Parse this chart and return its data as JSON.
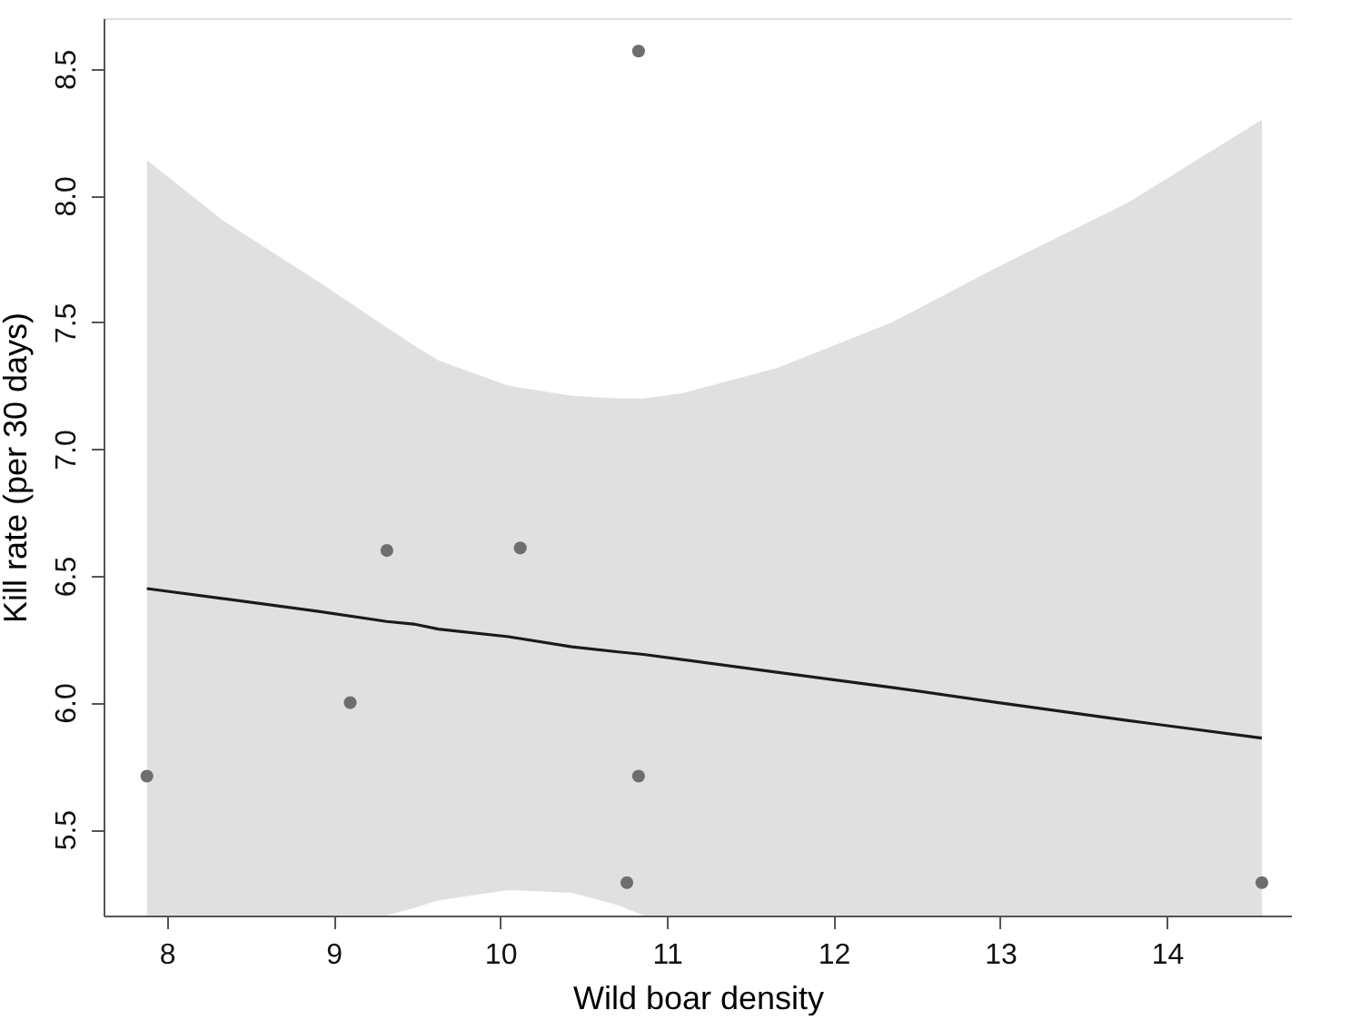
{
  "chart_data": {
    "type": "scatter",
    "xlabel": "Wild boar density",
    "ylabel": "Kill rate (per 30 days)",
    "xlim": [
      7.62,
      14.75
    ],
    "ylim": [
      5.16,
      8.7
    ],
    "xticks": [
      8,
      9,
      10,
      11,
      12,
      13,
      14
    ],
    "yticks": [
      5.5,
      {
        "value": 6,
        "label": "6.0"
      },
      6.5,
      {
        "value": 7,
        "label": "7.0"
      },
      7.5,
      {
        "value": 8,
        "label": "8.0"
      },
      8.5
    ],
    "grid": false,
    "series": [
      {
        "type": "line",
        "color": "#1a1a1a",
        "line_style": "solid",
        "marker": "none",
        "x": [
          7.88,
          8.34,
          8.91,
          9.32,
          9.48,
          9.63,
          10.05,
          10.43,
          10.71,
          10.86,
          11.09,
          11.66,
          12.35,
          12.99,
          13.76,
          14.57
        ],
        "values": [
          6.45,
          6.41,
          6.36,
          6.32,
          6.31,
          6.29,
          6.26,
          6.22,
          6.2,
          6.19,
          6.17,
          6.12,
          6.06,
          6.0,
          5.93,
          5.86
        ],
        "upper": [
          8.14,
          7.9,
          7.66,
          7.48,
          7.41,
          7.35,
          7.25,
          7.21,
          7.2,
          7.2,
          7.22,
          7.32,
          7.5,
          7.72,
          7.97,
          8.3
        ],
        "lower": [
          5.16,
          5.16,
          5.16,
          5.16,
          5.19,
          5.22,
          5.26,
          5.25,
          5.2,
          5.16,
          5.16,
          5.16,
          5.16,
          5.16,
          5.16,
          5.16
        ]
      },
      {
        "marker": "circle",
        "color": "#6e6e6e",
        "x": [
          7.88,
          9.1,
          9.32,
          10.12,
          10.76,
          10.83,
          10.83,
          14.57
        ],
        "values": [
          5.71,
          6.0,
          6.6,
          6.61,
          5.29,
          8.57,
          5.71,
          5.29
        ]
      }
    ]
  }
}
